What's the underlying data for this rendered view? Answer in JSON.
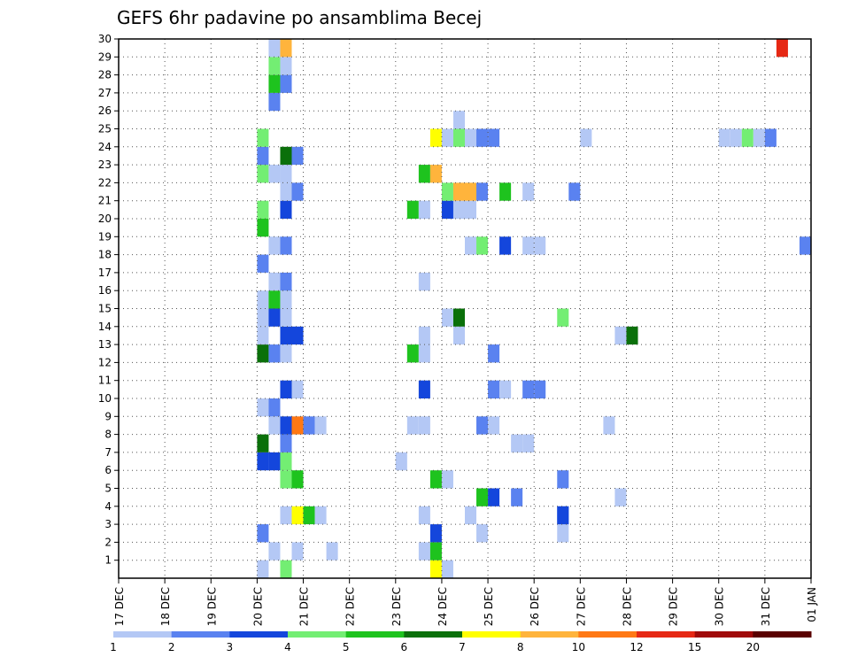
{
  "chart_data": {
    "type": "heatmap",
    "title": "GEFS 6hr padavine po ansamblima Becej",
    "x_labels": [
      "17 DEC",
      "18 DEC",
      "19 DEC",
      "20 DEC",
      "21 DEC",
      "22 DEC",
      "23 DEC",
      "24 DEC",
      "25 DEC",
      "26 DEC",
      "27 DEC",
      "28 DEC",
      "29 DEC",
      "30 DEC",
      "31 DEC",
      "01 JAN"
    ],
    "y_labels": [
      "1",
      "2",
      "3",
      "4",
      "5",
      "6",
      "7",
      "8",
      "9",
      "10",
      "11",
      "12",
      "13",
      "14",
      "15",
      "16",
      "17",
      "18",
      "19",
      "20",
      "21",
      "22",
      "23",
      "24",
      "25",
      "26",
      "27",
      "28",
      "29",
      "30"
    ],
    "x_unit": "6-hour step",
    "x_range": [
      0,
      60
    ],
    "y_range": [
      0,
      30
    ],
    "grid": true,
    "legend": {
      "position": "bottom",
      "labels": [
        "1",
        "2",
        "3",
        "4",
        "5",
        "6",
        "7",
        "8",
        "10",
        "12",
        "15",
        "20"
      ],
      "colors": [
        "#b4c8f5",
        "#5a82f0",
        "#1446dc",
        "#73ee73",
        "#1ec31e",
        "#0a700a",
        "#ffff00",
        "#ffb43c",
        "#ff7814",
        "#e62814",
        "#a00a0a",
        "#5a0000"
      ]
    },
    "cells": [
      [
        12,
        0,
        0
      ],
      [
        14,
        0,
        3
      ],
      [
        27,
        0,
        6
      ],
      [
        28,
        0,
        0
      ],
      [
        28,
        -1,
        0
      ],
      [
        31,
        -1,
        0
      ],
      [
        13,
        1,
        0
      ],
      [
        15,
        1,
        0
      ],
      [
        18,
        1,
        0
      ],
      [
        26,
        1,
        0
      ],
      [
        27,
        1,
        4
      ],
      [
        12,
        2,
        1
      ],
      [
        27,
        2,
        2
      ],
      [
        31,
        2,
        0
      ],
      [
        38,
        2,
        0
      ],
      [
        38,
        3,
        1
      ],
      [
        14,
        3,
        0
      ],
      [
        15,
        3,
        6
      ],
      [
        16,
        3,
        4
      ],
      [
        17,
        3,
        0
      ],
      [
        26,
        3,
        0
      ],
      [
        30,
        3,
        0
      ],
      [
        38,
        3,
        2
      ],
      [
        31,
        4,
        4
      ],
      [
        32,
        4,
        2
      ],
      [
        34,
        4,
        1
      ],
      [
        43,
        4,
        0
      ],
      [
        14,
        5,
        3
      ],
      [
        15,
        5,
        4
      ],
      [
        27,
        5,
        4
      ],
      [
        28,
        5,
        0
      ],
      [
        38,
        5,
        1
      ],
      [
        12,
        6,
        2
      ],
      [
        13,
        6,
        2
      ],
      [
        14,
        6,
        3
      ],
      [
        24,
        6,
        0
      ],
      [
        12,
        7,
        5
      ],
      [
        14,
        7,
        1
      ],
      [
        34,
        7,
        0
      ],
      [
        35,
        7,
        0
      ],
      [
        13,
        8,
        0
      ],
      [
        14,
        8,
        2
      ],
      [
        15,
        8,
        8
      ],
      [
        16,
        8,
        1
      ],
      [
        17,
        8,
        0
      ],
      [
        25,
        8,
        0
      ],
      [
        26,
        8,
        0
      ],
      [
        31,
        8,
        1
      ],
      [
        32,
        8,
        0
      ],
      [
        42,
        8,
        0
      ],
      [
        12,
        9,
        0
      ],
      [
        13,
        9,
        1
      ],
      [
        14,
        10,
        2
      ],
      [
        15,
        10,
        0
      ],
      [
        26,
        10,
        2
      ],
      [
        32,
        10,
        1
      ],
      [
        33,
        10,
        0
      ],
      [
        35,
        10,
        1
      ],
      [
        36,
        10,
        1
      ],
      [
        12,
        12,
        5
      ],
      [
        13,
        12,
        1
      ],
      [
        14,
        12,
        0
      ],
      [
        25,
        12,
        4
      ],
      [
        26,
        12,
        0
      ],
      [
        32,
        12,
        1
      ],
      [
        12,
        13,
        0
      ],
      [
        14,
        13,
        2
      ],
      [
        15,
        13,
        2
      ],
      [
        26,
        13,
        0
      ],
      [
        29,
        13,
        0
      ],
      [
        43,
        13,
        0
      ],
      [
        44,
        13,
        5
      ],
      [
        12,
        14,
        0
      ],
      [
        13,
        14,
        2
      ],
      [
        14,
        14,
        0
      ],
      [
        28,
        14,
        0
      ],
      [
        29,
        14,
        5
      ],
      [
        38,
        14,
        3
      ],
      [
        12,
        15,
        0
      ],
      [
        13,
        15,
        4
      ],
      [
        14,
        15,
        0
      ],
      [
        13,
        16,
        0
      ],
      [
        14,
        16,
        1
      ],
      [
        26,
        16,
        0
      ],
      [
        12,
        17,
        1
      ],
      [
        13,
        18,
        0
      ],
      [
        14,
        18,
        1
      ],
      [
        30,
        18,
        0
      ],
      [
        31,
        18,
        3
      ],
      [
        33,
        18,
        2
      ],
      [
        35,
        18,
        0
      ],
      [
        36,
        18,
        0
      ],
      [
        59,
        18,
        1
      ],
      [
        12,
        19,
        4
      ],
      [
        12,
        20,
        3
      ],
      [
        14,
        20,
        2
      ],
      [
        25,
        20,
        4
      ],
      [
        26,
        20,
        0
      ],
      [
        28,
        20,
        2
      ],
      [
        29,
        20,
        0
      ],
      [
        30,
        20,
        0
      ],
      [
        14,
        21,
        0
      ],
      [
        15,
        21,
        1
      ],
      [
        28,
        21,
        3
      ],
      [
        29,
        21,
        7
      ],
      [
        30,
        21,
        7
      ],
      [
        31,
        21,
        1
      ],
      [
        33,
        21,
        4
      ],
      [
        35,
        21,
        0
      ],
      [
        39,
        21,
        1
      ],
      [
        12,
        22,
        3
      ],
      [
        13,
        22,
        0
      ],
      [
        14,
        22,
        0
      ],
      [
        26,
        22,
        4
      ],
      [
        27,
        22,
        7
      ],
      [
        12,
        23,
        1
      ],
      [
        14,
        23,
        5
      ],
      [
        15,
        23,
        1
      ],
      [
        12,
        24,
        3
      ],
      [
        27,
        24,
        6
      ],
      [
        28,
        24,
        0
      ],
      [
        29,
        24,
        3
      ],
      [
        30,
        24,
        0
      ],
      [
        31,
        24,
        1
      ],
      [
        32,
        24,
        1
      ],
      [
        40,
        24,
        0
      ],
      [
        52,
        24,
        0
      ],
      [
        53,
        24,
        0
      ],
      [
        54,
        24,
        3
      ],
      [
        55,
        24,
        0
      ],
      [
        56,
        24,
        1
      ],
      [
        29,
        25,
        0
      ],
      [
        13,
        26,
        1
      ],
      [
        13,
        27,
        4
      ],
      [
        14,
        27,
        1
      ],
      [
        13,
        28,
        3
      ],
      [
        14,
        28,
        0
      ],
      [
        13,
        29,
        0
      ],
      [
        14,
        29,
        7
      ],
      [
        57,
        29,
        9
      ],
      [
        12,
        30,
        0
      ],
      [
        25,
        30,
        1
      ]
    ]
  }
}
